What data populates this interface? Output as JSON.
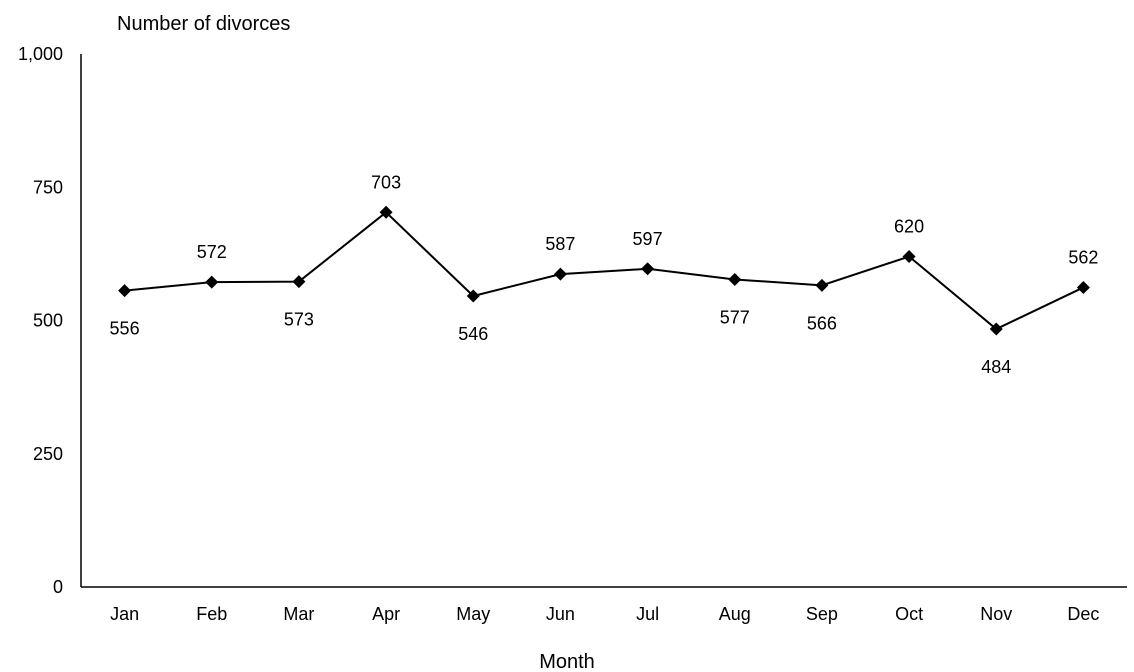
{
  "chart_data": {
    "type": "line",
    "title": "",
    "ylabel": "Number of divorces",
    "xlabel": "Month",
    "categories": [
      "Jan",
      "Feb",
      "Mar",
      "Apr",
      "May",
      "Jun",
      "Jul",
      "Aug",
      "Sep",
      "Oct",
      "Nov",
      "Dec"
    ],
    "series": [
      {
        "values": [
          556,
          572,
          573,
          703,
          546,
          587,
          597,
          577,
          566,
          620,
          484,
          562
        ]
      }
    ],
    "ylim": [
      0,
      1000
    ],
    "yticks": [
      0,
      250,
      500,
      750,
      1000
    ],
    "ytick_labels": [
      "0",
      "250",
      "500",
      "750",
      "1,000"
    ],
    "grid": false,
    "legend": "none",
    "marker": "diamond",
    "line_color": "#000000"
  }
}
